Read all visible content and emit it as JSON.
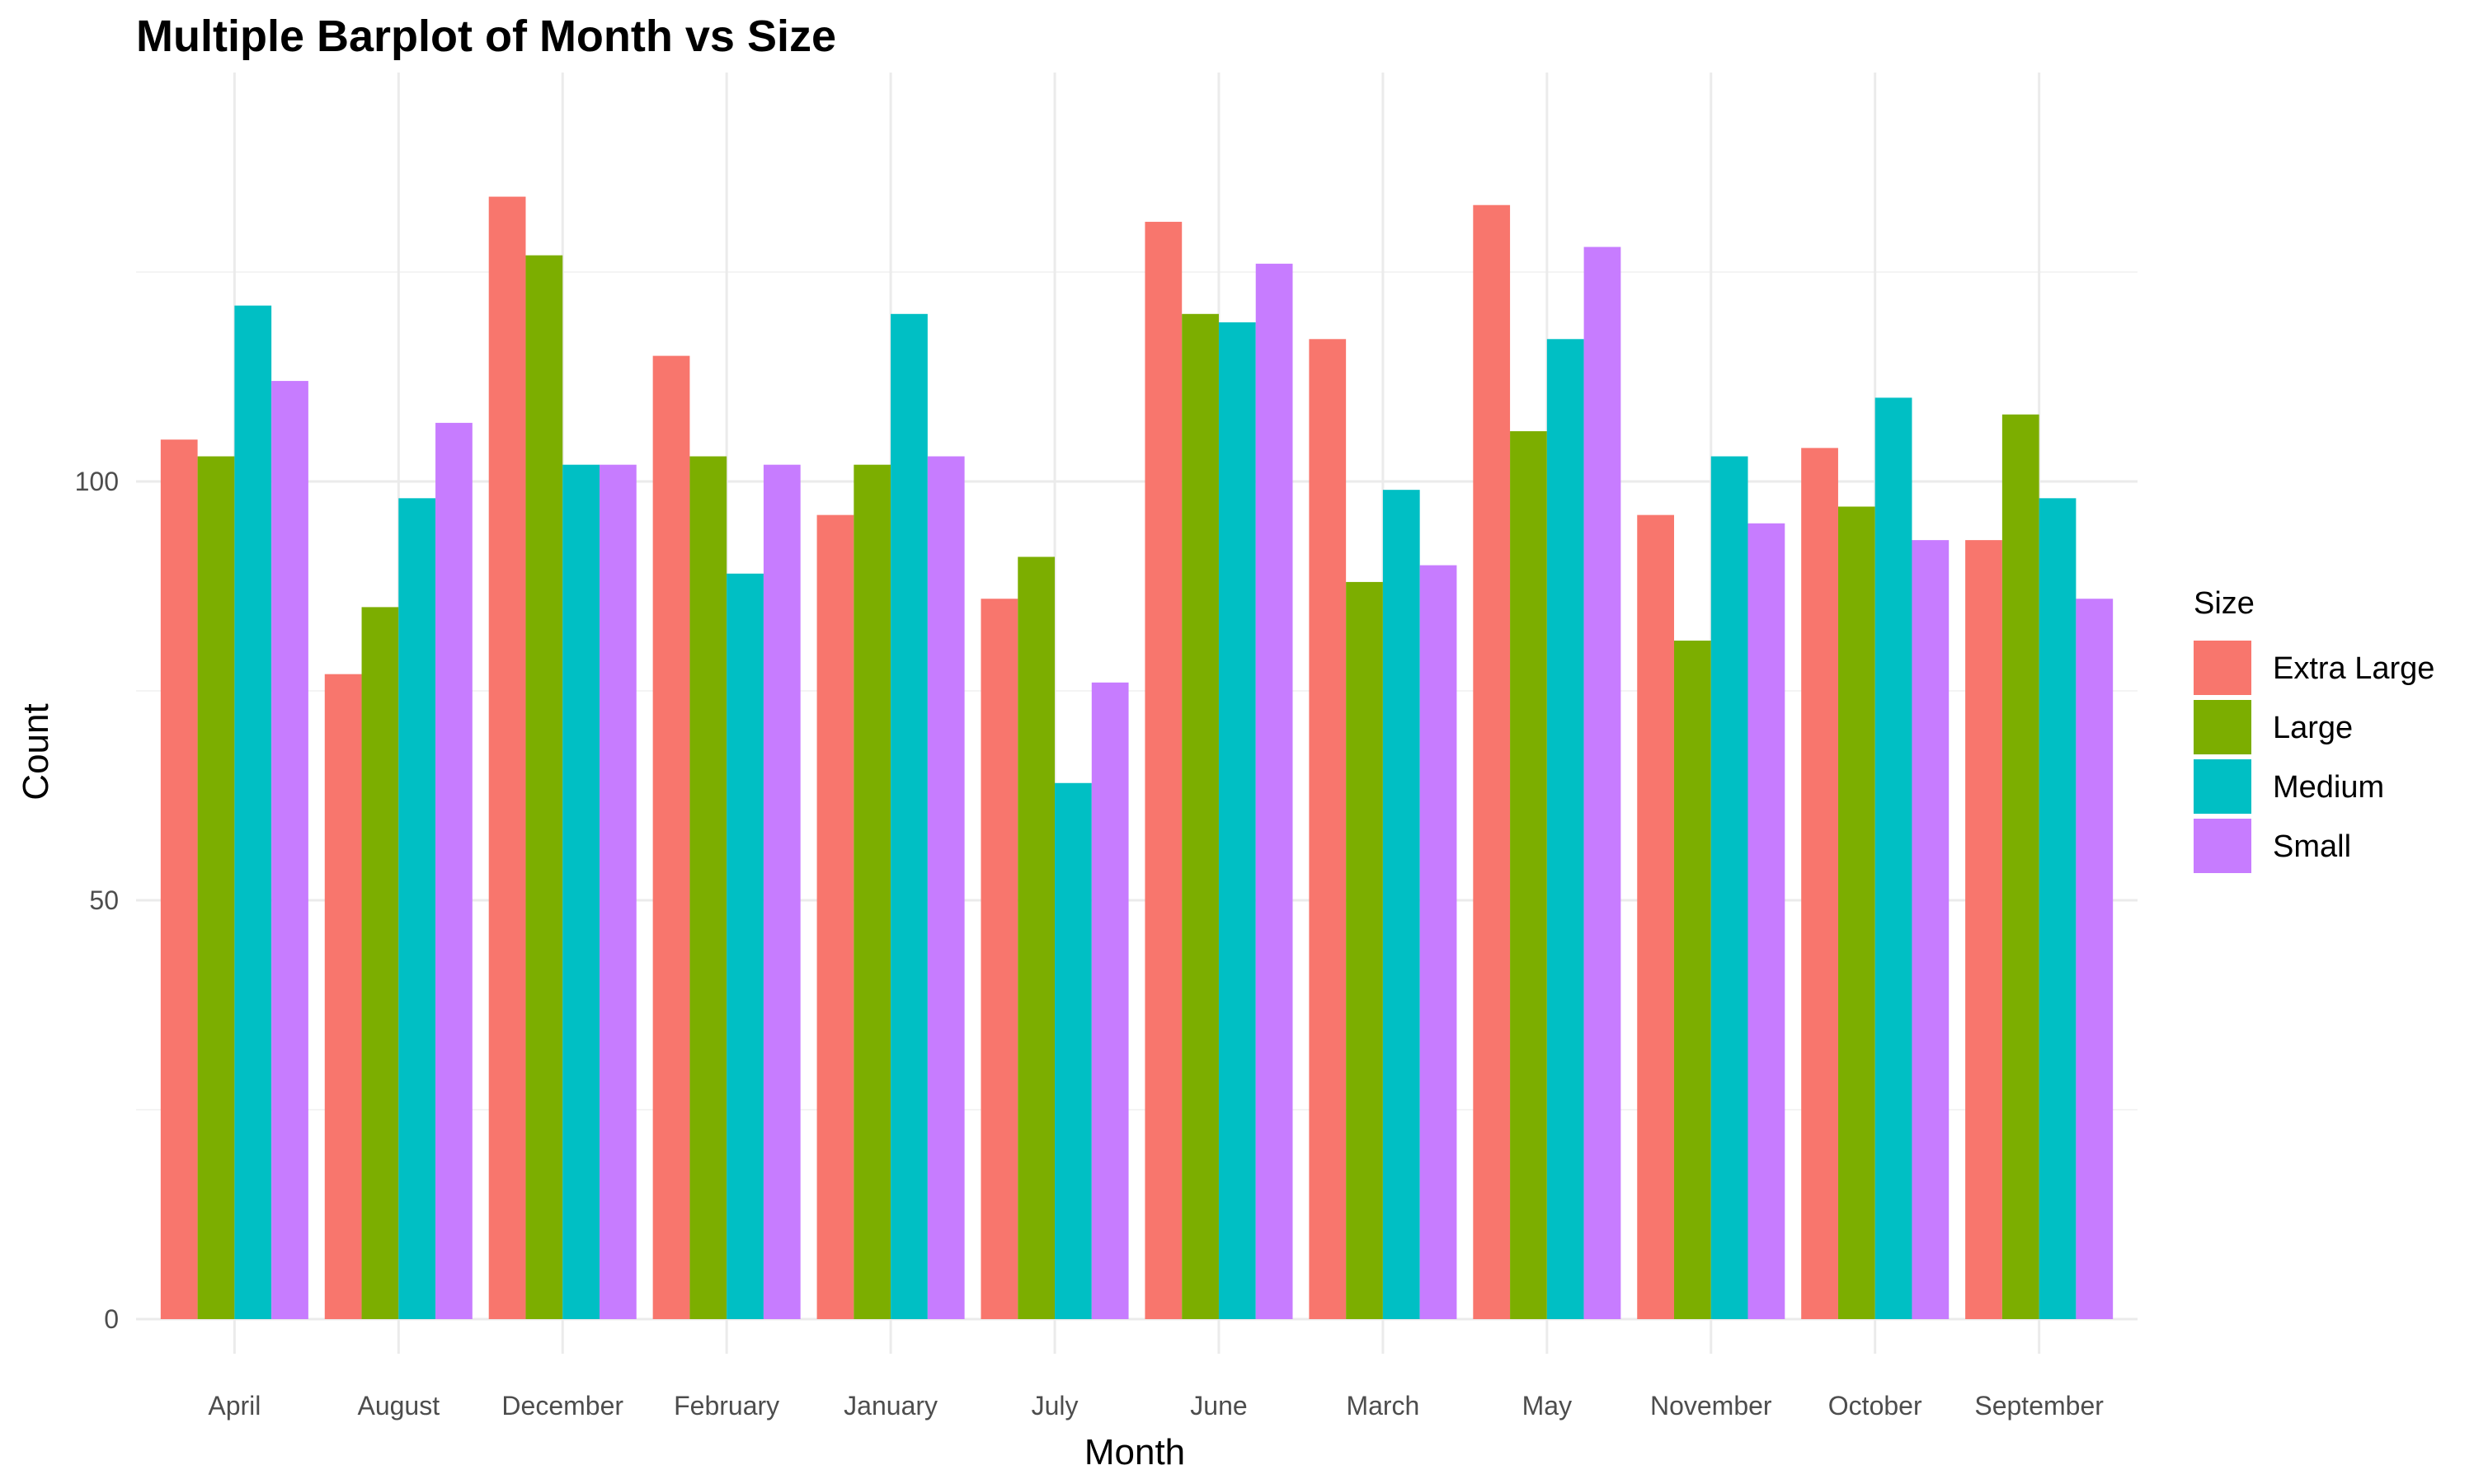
{
  "chart_data": {
    "type": "bar",
    "title": "Multiple Barplot of Month vs Size",
    "xlabel": "Month",
    "ylabel": "Count",
    "ylim": [
      0,
      145
    ],
    "yticks": [
      0,
      50,
      100
    ],
    "grid": true,
    "legend": {
      "title": "Size",
      "position": "right"
    },
    "categories": [
      "April",
      "August",
      "December",
      "February",
      "January",
      "July",
      "June",
      "March",
      "May",
      "November",
      "October",
      "September"
    ],
    "series": [
      {
        "name": "Extra Large",
        "color": "#F8766D",
        "values": [
          105,
          77,
          134,
          115,
          96,
          86,
          131,
          117,
          133,
          96,
          104,
          93
        ]
      },
      {
        "name": "Large",
        "color": "#7CAE00",
        "values": [
          103,
          85,
          127,
          103,
          102,
          91,
          120,
          88,
          106,
          81,
          97,
          108
        ]
      },
      {
        "name": "Medium",
        "color": "#00BFC4",
        "values": [
          121,
          98,
          102,
          89,
          120,
          64,
          119,
          99,
          117,
          103,
          110,
          98
        ]
      },
      {
        "name": "Small",
        "color": "#C77CFF",
        "values": [
          112,
          107,
          102,
          102,
          103,
          76,
          126,
          90,
          128,
          95,
          93,
          86
        ]
      }
    ]
  }
}
